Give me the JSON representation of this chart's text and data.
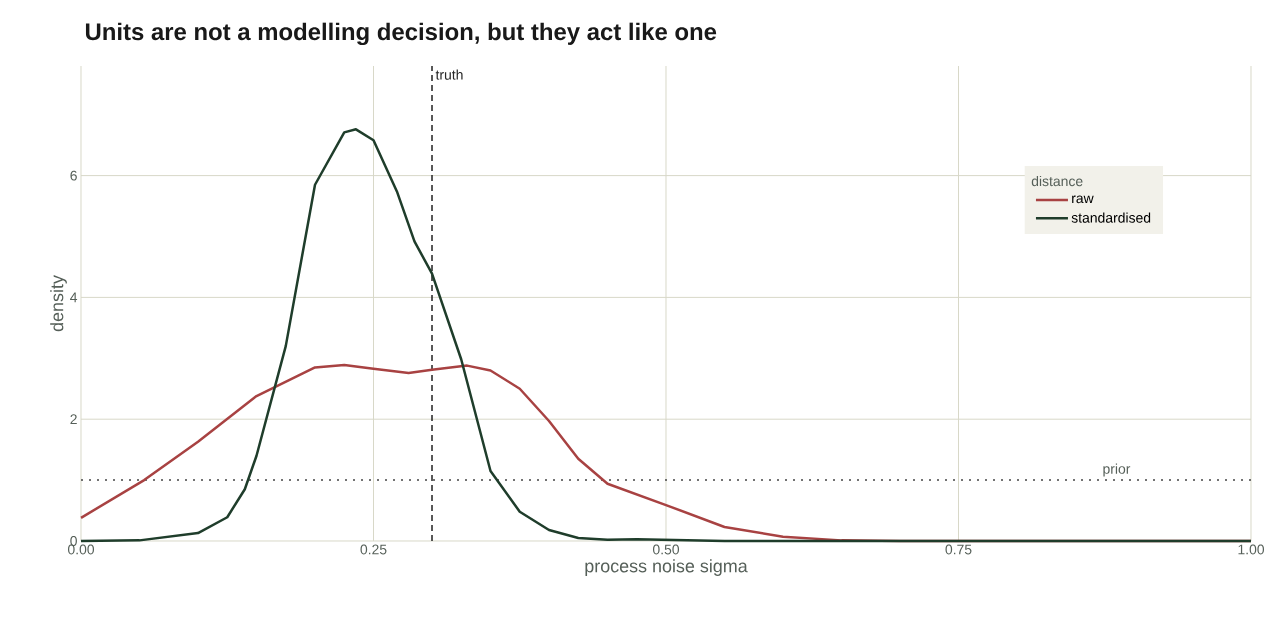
{
  "chart_data": {
    "type": "line",
    "title": "Units are not a modelling decision, but they act like one",
    "xlabel": "process noise sigma",
    "ylabel": "density",
    "legend_title": "distance",
    "xlim": [
      0,
      1
    ],
    "ylim": [
      0,
      7.8
    ],
    "xticks": [
      {
        "value": 0,
        "label": "0.00"
      },
      {
        "value": 0.25,
        "label": "0.25"
      },
      {
        "value": 0.5,
        "label": "0.50"
      },
      {
        "value": 0.75,
        "label": "0.75"
      },
      {
        "value": 1,
        "label": "1.00"
      }
    ],
    "yticks": [
      0,
      2,
      4,
      6
    ],
    "grid": true,
    "legend": "top right",
    "line_style": "solid",
    "marker": "none",
    "series": [
      {
        "name": "raw",
        "color": "#a84242",
        "x": [
          0,
          0.054,
          0.1,
          0.15,
          0.2,
          0.225,
          0.25,
          0.28,
          0.3,
          0.33,
          0.35,
          0.375,
          0.4,
          0.425,
          0.45,
          0.5,
          0.55,
          0.6,
          0.65,
          0.7,
          1.0
        ],
        "values": [
          0.38,
          1.0,
          1.63,
          2.38,
          2.85,
          2.89,
          2.83,
          2.76,
          2.81,
          2.88,
          2.8,
          2.5,
          1.97,
          1.35,
          0.94,
          0.59,
          0.23,
          0.07,
          0.01,
          0,
          0
        ]
      },
      {
        "name": "standardised",
        "color": "#1f3d2b",
        "x": [
          0,
          0.05,
          0.1,
          0.125,
          0.14,
          0.15,
          0.175,
          0.2,
          0.225,
          0.235,
          0.25,
          0.27,
          0.285,
          0.3,
          0.325,
          0.35,
          0.375,
          0.4,
          0.425,
          0.45,
          0.475,
          0.5,
          0.55,
          1.0
        ],
        "values": [
          0,
          0.01,
          0.13,
          0.39,
          0.85,
          1.4,
          3.2,
          5.85,
          6.71,
          6.76,
          6.58,
          5.74,
          4.92,
          4.39,
          2.98,
          1.15,
          0.48,
          0.18,
          0.05,
          0.02,
          0.03,
          0.02,
          0,
          0
        ]
      }
    ],
    "ref_lines": [
      {
        "axis": "x",
        "value": 0.3,
        "label": "truth",
        "line_style": "dashed",
        "color": "#222222"
      },
      {
        "axis": "y",
        "value": 1,
        "label": "prior",
        "line_style": "dotted",
        "color": "#444444"
      }
    ]
  }
}
